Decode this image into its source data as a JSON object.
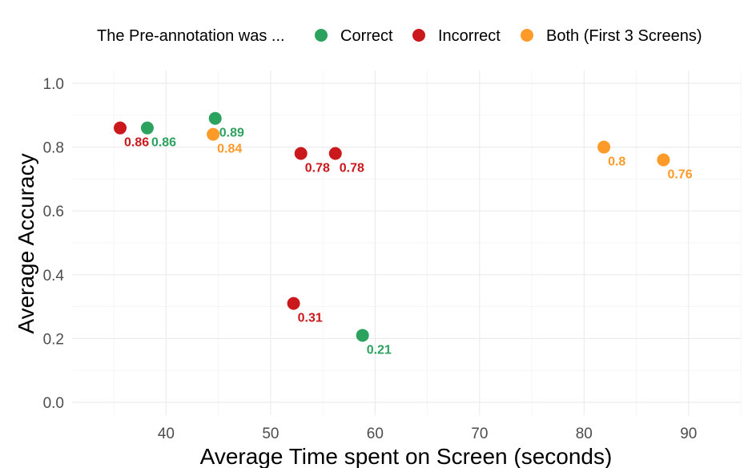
{
  "chart_data": {
    "type": "scatter",
    "title": "",
    "xlabel": "Average Time spent on Screen (seconds)",
    "ylabel": "Average Accuracy",
    "xlim": [
      31,
      95
    ],
    "ylim": [
      -0.04,
      1.04
    ],
    "xticks": [
      40,
      50,
      60,
      70,
      80,
      90
    ],
    "yticks": [
      0.0,
      0.2,
      0.4,
      0.6,
      0.8,
      1.0
    ],
    "ytick_labels": [
      "0.0",
      "0.2",
      "0.4",
      "0.6",
      "0.8",
      "1.0"
    ],
    "grid": true,
    "legend": {
      "position": "top",
      "title": "The Pre-annotation was ...",
      "entries": [
        {
          "name": "Correct",
          "color": "#2ca25f"
        },
        {
          "name": "Incorrect",
          "color": "#cb181d"
        },
        {
          "name": "Both (First 3 Screens)",
          "color": "#fd9a28"
        }
      ]
    },
    "series": [
      {
        "name": "Correct",
        "color": "#2ca25f",
        "points": [
          {
            "x": 38.2,
            "y": 0.86,
            "label": "0.86"
          },
          {
            "x": 44.7,
            "y": 0.89,
            "label": "0.89"
          },
          {
            "x": 58.8,
            "y": 0.21,
            "label": "0.21"
          }
        ]
      },
      {
        "name": "Incorrect",
        "color": "#cb181d",
        "points": [
          {
            "x": 35.6,
            "y": 0.86,
            "label": "0.86"
          },
          {
            "x": 52.9,
            "y": 0.78,
            "label": "0.78"
          },
          {
            "x": 56.2,
            "y": 0.78,
            "label": "0.78"
          },
          {
            "x": 52.2,
            "y": 0.31,
            "label": "0.31"
          }
        ]
      },
      {
        "name": "Both (First 3 Screens)",
        "color": "#fd9a28",
        "points": [
          {
            "x": 44.5,
            "y": 0.84,
            "label": "0.84"
          },
          {
            "x": 81.9,
            "y": 0.8,
            "label": "0.8"
          },
          {
            "x": 87.6,
            "y": 0.76,
            "label": "0.76"
          }
        ]
      }
    ]
  }
}
